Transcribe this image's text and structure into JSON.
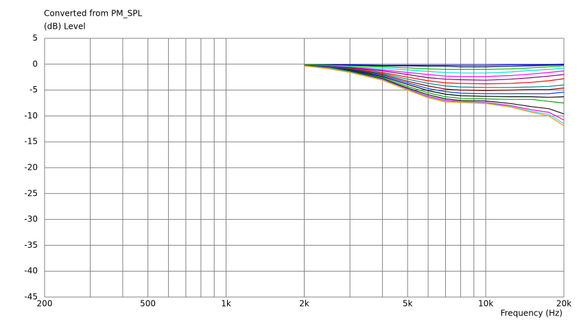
{
  "chart_data": {
    "type": "line",
    "title": "Converted from PM_SPL",
    "ylabel": "(dB)  Level",
    "xlabel": "Frequency  (Hz)",
    "xscale": "log",
    "grid": true,
    "xlim": [
      200,
      20000
    ],
    "ylim": [
      -45,
      5
    ],
    "yticks": [
      5,
      0,
      -5,
      -10,
      -15,
      -20,
      -25,
      -30,
      -35,
      -40,
      -45
    ],
    "xticks": [
      200,
      500,
      {
        "value": 1000,
        "label": "1k"
      },
      {
        "value": 2000,
        "label": "2k"
      },
      {
        "value": 5000,
        "label": "5k"
      },
      {
        "value": 10000,
        "label": "10k"
      },
      {
        "value": 20000,
        "label": "20k"
      }
    ],
    "xminor": [
      300,
      400,
      600,
      700,
      800,
      900,
      3000,
      4000,
      6000,
      7000,
      8000,
      9000
    ],
    "x": [
      2000,
      2500,
      3000,
      4000,
      5000,
      6000,
      7000,
      8000,
      10000,
      12500,
      15000,
      17500,
      20000
    ],
    "series": [
      {
        "color": "#0000ff",
        "values": [
          -0.1,
          -0.1,
          -0.1,
          -0.2,
          -0.2,
          -0.2,
          -0.2,
          -0.2,
          -0.2,
          -0.1,
          -0.1,
          -0.1,
          0
        ]
      },
      {
        "color": "#000080",
        "values": [
          -0.1,
          -0.1,
          -0.2,
          -0.3,
          -0.3,
          -0.4,
          -0.4,
          -0.5,
          -0.5,
          -0.4,
          -0.3,
          -0.2,
          -0.1
        ]
      },
      {
        "color": "#00c000",
        "values": [
          -0.1,
          -0.2,
          -0.3,
          -0.5,
          -0.7,
          -0.9,
          -1.0,
          -1.0,
          -1.0,
          -0.9,
          -0.7,
          -0.5,
          -0.3
        ]
      },
      {
        "color": "#00e0e0",
        "values": [
          -0.2,
          -0.3,
          -0.5,
          -0.8,
          -1.1,
          -1.4,
          -1.6,
          -1.7,
          -1.7,
          -1.5,
          -1.2,
          -1.0,
          -0.8
        ]
      },
      {
        "color": "#ff00ff",
        "values": [
          -0.2,
          -0.4,
          -0.6,
          -1.1,
          -1.6,
          -2.0,
          -2.3,
          -2.4,
          -2.4,
          -2.2,
          -1.9,
          -1.6,
          -1.3
        ]
      },
      {
        "color": "#800080",
        "values": [
          -0.2,
          -0.4,
          -0.7,
          -1.3,
          -2.0,
          -2.6,
          -2.9,
          -3.0,
          -3.1,
          -2.9,
          -2.6,
          -2.3,
          -2.0
        ]
      },
      {
        "color": "#ff0000",
        "values": [
          -0.2,
          -0.5,
          -0.8,
          -1.6,
          -2.5,
          -3.2,
          -3.6,
          -3.7,
          -3.8,
          -3.7,
          -3.5,
          -3.2,
          -2.8
        ]
      },
      {
        "color": "#008080",
        "values": [
          -0.3,
          -0.5,
          -0.9,
          -1.8,
          -2.9,
          -3.7,
          -4.2,
          -4.4,
          -4.5,
          -4.5,
          -4.4,
          -4.3,
          -4.0
        ]
      },
      {
        "color": "#800000",
        "values": [
          -0.3,
          -0.6,
          -1.0,
          -2.0,
          -3.3,
          -4.2,
          -4.8,
          -5.0,
          -5.1,
          -5.0,
          -4.9,
          -4.9,
          -4.6
        ]
      },
      {
        "color": "#0040ff",
        "values": [
          -0.3,
          -0.6,
          -1.1,
          -2.2,
          -3.6,
          -4.7,
          -5.3,
          -5.6,
          -5.7,
          -5.7,
          -5.7,
          -5.7,
          -5.4
        ]
      },
      {
        "color": "#000000",
        "values": [
          -0.3,
          -0.7,
          -1.2,
          -2.4,
          -3.9,
          -5.1,
          -5.8,
          -6.1,
          -6.2,
          -6.3,
          -6.3,
          -6.4,
          -6.3
        ]
      },
      {
        "color": "#00a000",
        "values": [
          -0.3,
          -0.7,
          -1.3,
          -2.6,
          -4.3,
          -5.5,
          -6.3,
          -6.6,
          -6.7,
          -6.8,
          -6.8,
          -7.2,
          -7.5
        ]
      },
      {
        "color": "#101010",
        "values": [
          -0.3,
          -0.8,
          -1.4,
          -2.8,
          -4.6,
          -5.9,
          -6.7,
          -7.0,
          -7.1,
          -7.6,
          -8.2,
          -8.6,
          -9.6
        ]
      },
      {
        "color": "#e000e0",
        "values": [
          -0.3,
          -0.8,
          -1.5,
          -2.9,
          -4.8,
          -6.2,
          -7.0,
          -7.2,
          -7.4,
          -8.0,
          -8.8,
          -9.3,
          -10.8
        ]
      },
      {
        "color": "#40d0d0",
        "values": [
          -0.3,
          -0.8,
          -1.5,
          -3.0,
          -4.9,
          -6.4,
          -7.2,
          -7.3,
          -7.5,
          -8.2,
          -9.1,
          -9.7,
          -11.5
        ]
      },
      {
        "color": "#ff9900",
        "values": [
          -0.3,
          -0.9,
          -1.6,
          -3.1,
          -5.0,
          -6.5,
          -7.3,
          -7.4,
          -7.6,
          -8.3,
          -9.3,
          -10.0,
          -11.9
        ]
      }
    ]
  }
}
